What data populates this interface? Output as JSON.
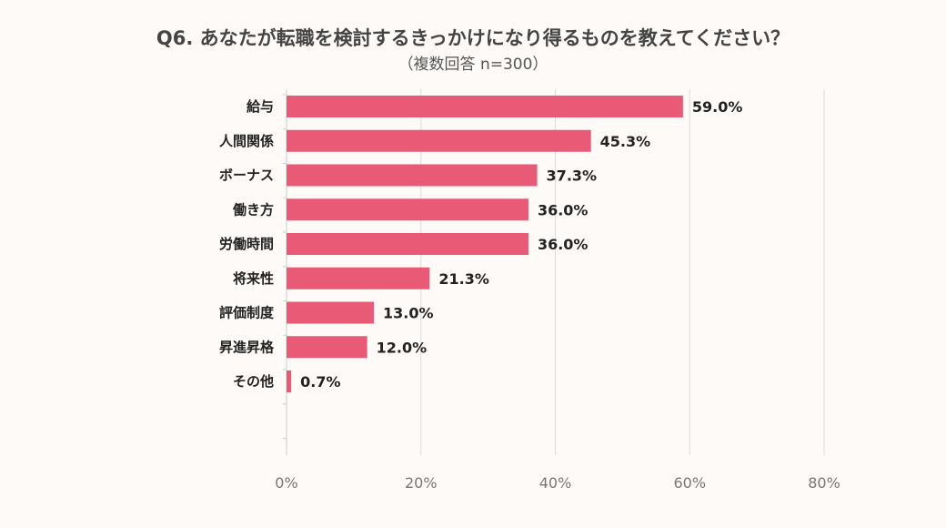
{
  "title": "Q6. あなたが転職を検討するきっかけになり得るものを教えてください？",
  "subtitle": "（複数回答 n=300）",
  "colors": {
    "bar": "#e85a76",
    "grid": "#dcdcdc",
    "background": "#fdfaf7"
  },
  "chart_data": {
    "type": "bar",
    "orientation": "horizontal",
    "categories": [
      "給与",
      "人間関係",
      "ボーナス",
      "働き方",
      "労働時間",
      "将来性",
      "評価制度",
      "昇進昇格",
      "その他"
    ],
    "values": [
      59.0,
      45.3,
      37.3,
      36.0,
      36.0,
      21.3,
      13.0,
      12.0,
      0.7
    ],
    "value_labels": [
      "59.0%",
      "45.3%",
      "37.3%",
      "36.0%",
      "36.0%",
      "21.3%",
      "13.0%",
      "12.0%",
      "0.7%"
    ],
    "xlim": [
      0,
      80
    ],
    "x_ticks": [
      0,
      20,
      40,
      60,
      80
    ],
    "x_tick_labels": [
      "0%",
      "20%",
      "40%",
      "60%",
      "80%"
    ],
    "grid": true,
    "legend": "none"
  }
}
